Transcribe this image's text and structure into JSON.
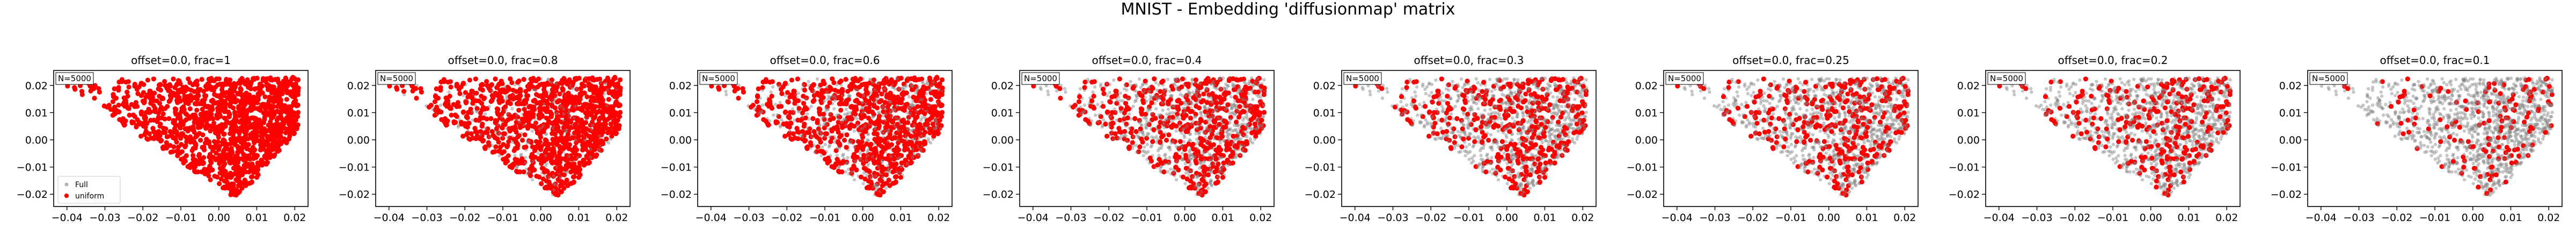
{
  "figure": {
    "title": "MNIST - Embedding 'diffusionmap' matrix"
  },
  "colors": {
    "full": "#808080",
    "uniform": "#ff0000",
    "axis": "#000000",
    "background": "#ffffff"
  },
  "chart_data": [
    {
      "type": "scatter",
      "title": "offset=0.0, frac=1",
      "frac": 1,
      "annotation": "N=5000",
      "legend": [
        "Full",
        "uniform"
      ],
      "legend_position": "lower-left",
      "x_ticks": [
        "−0.04",
        "−0.03",
        "−0.02",
        "−0.01",
        "0.00",
        "0.01",
        "0.02"
      ],
      "y_ticks": [
        "0.02",
        "0.01",
        "0.00",
        "−0.01",
        "−0.02"
      ],
      "xlim": [
        -0.0435,
        0.0235
      ],
      "ylim": [
        -0.0245,
        0.0255
      ],
      "series": [
        {
          "name": "Full",
          "color": "#808080"
        },
        {
          "name": "uniform",
          "color": "#ff0000"
        }
      ]
    },
    {
      "type": "scatter",
      "title": "offset=0.0, frac=0.8",
      "frac": 0.8,
      "annotation": "N=5000",
      "x_ticks": [
        "−0.04",
        "−0.03",
        "−0.02",
        "−0.01",
        "0.00",
        "0.01",
        "0.02"
      ],
      "y_ticks": [
        "0.02",
        "0.01",
        "0.00",
        "−0.01",
        "−0.02"
      ],
      "xlim": [
        -0.0435,
        0.0235
      ],
      "ylim": [
        -0.0245,
        0.0255
      ]
    },
    {
      "type": "scatter",
      "title": "offset=0.0, frac=0.6",
      "frac": 0.6,
      "annotation": "N=5000",
      "x_ticks": [
        "−0.04",
        "−0.03",
        "−0.02",
        "−0.01",
        "0.00",
        "0.01",
        "0.02"
      ],
      "y_ticks": [
        "0.02",
        "0.01",
        "0.00",
        "−0.01",
        "−0.02"
      ],
      "xlim": [
        -0.0435,
        0.0235
      ],
      "ylim": [
        -0.0245,
        0.0255
      ]
    },
    {
      "type": "scatter",
      "title": "offset=0.0, frac=0.4",
      "frac": 0.4,
      "annotation": "N=5000",
      "x_ticks": [
        "−0.04",
        "−0.03",
        "−0.02",
        "−0.01",
        "0.00",
        "0.01",
        "0.02"
      ],
      "y_ticks": [
        "0.02",
        "0.01",
        "0.00",
        "−0.01",
        "−0.02"
      ],
      "xlim": [
        -0.0435,
        0.0235
      ],
      "ylim": [
        -0.0245,
        0.0255
      ]
    },
    {
      "type": "scatter",
      "title": "offset=0.0, frac=0.3",
      "frac": 0.3,
      "annotation": "N=5000",
      "x_ticks": [
        "−0.04",
        "−0.03",
        "−0.02",
        "−0.01",
        "0.00",
        "0.01",
        "0.02"
      ],
      "y_ticks": [
        "0.02",
        "0.01",
        "0.00",
        "−0.01",
        "−0.02"
      ],
      "xlim": [
        -0.0435,
        0.0235
      ],
      "ylim": [
        -0.0245,
        0.0255
      ]
    },
    {
      "type": "scatter",
      "title": "offset=0.0, frac=0.25",
      "frac": 0.25,
      "annotation": "N=5000",
      "x_ticks": [
        "−0.04",
        "−0.03",
        "−0.02",
        "−0.01",
        "0.00",
        "0.01",
        "0.02"
      ],
      "y_ticks": [
        "0.02",
        "0.01",
        "0.00",
        "−0.01",
        "−0.02"
      ],
      "xlim": [
        -0.0435,
        0.0235
      ],
      "ylim": [
        -0.0245,
        0.0255
      ]
    },
    {
      "type": "scatter",
      "title": "offset=0.0, frac=0.2",
      "frac": 0.2,
      "annotation": "N=5000",
      "x_ticks": [
        "−0.04",
        "−0.03",
        "−0.02",
        "−0.01",
        "0.00",
        "0.01",
        "0.02"
      ],
      "y_ticks": [
        "0.02",
        "0.01",
        "0.00",
        "−0.01",
        "−0.02"
      ],
      "xlim": [
        -0.0435,
        0.0235
      ],
      "ylim": [
        -0.0245,
        0.0255
      ]
    },
    {
      "type": "scatter",
      "title": "offset=0.0, frac=0.1",
      "frac": 0.1,
      "annotation": "N=5000",
      "x_ticks": [
        "−0.04",
        "−0.03",
        "−0.02",
        "−0.01",
        "0.00",
        "0.01",
        "0.02"
      ],
      "y_ticks": [
        "0.02",
        "0.01",
        "0.00",
        "−0.01",
        "−0.02"
      ],
      "xlim": [
        -0.0435,
        0.0235
      ],
      "ylim": [
        -0.0245,
        0.0255
      ]
    }
  ]
}
